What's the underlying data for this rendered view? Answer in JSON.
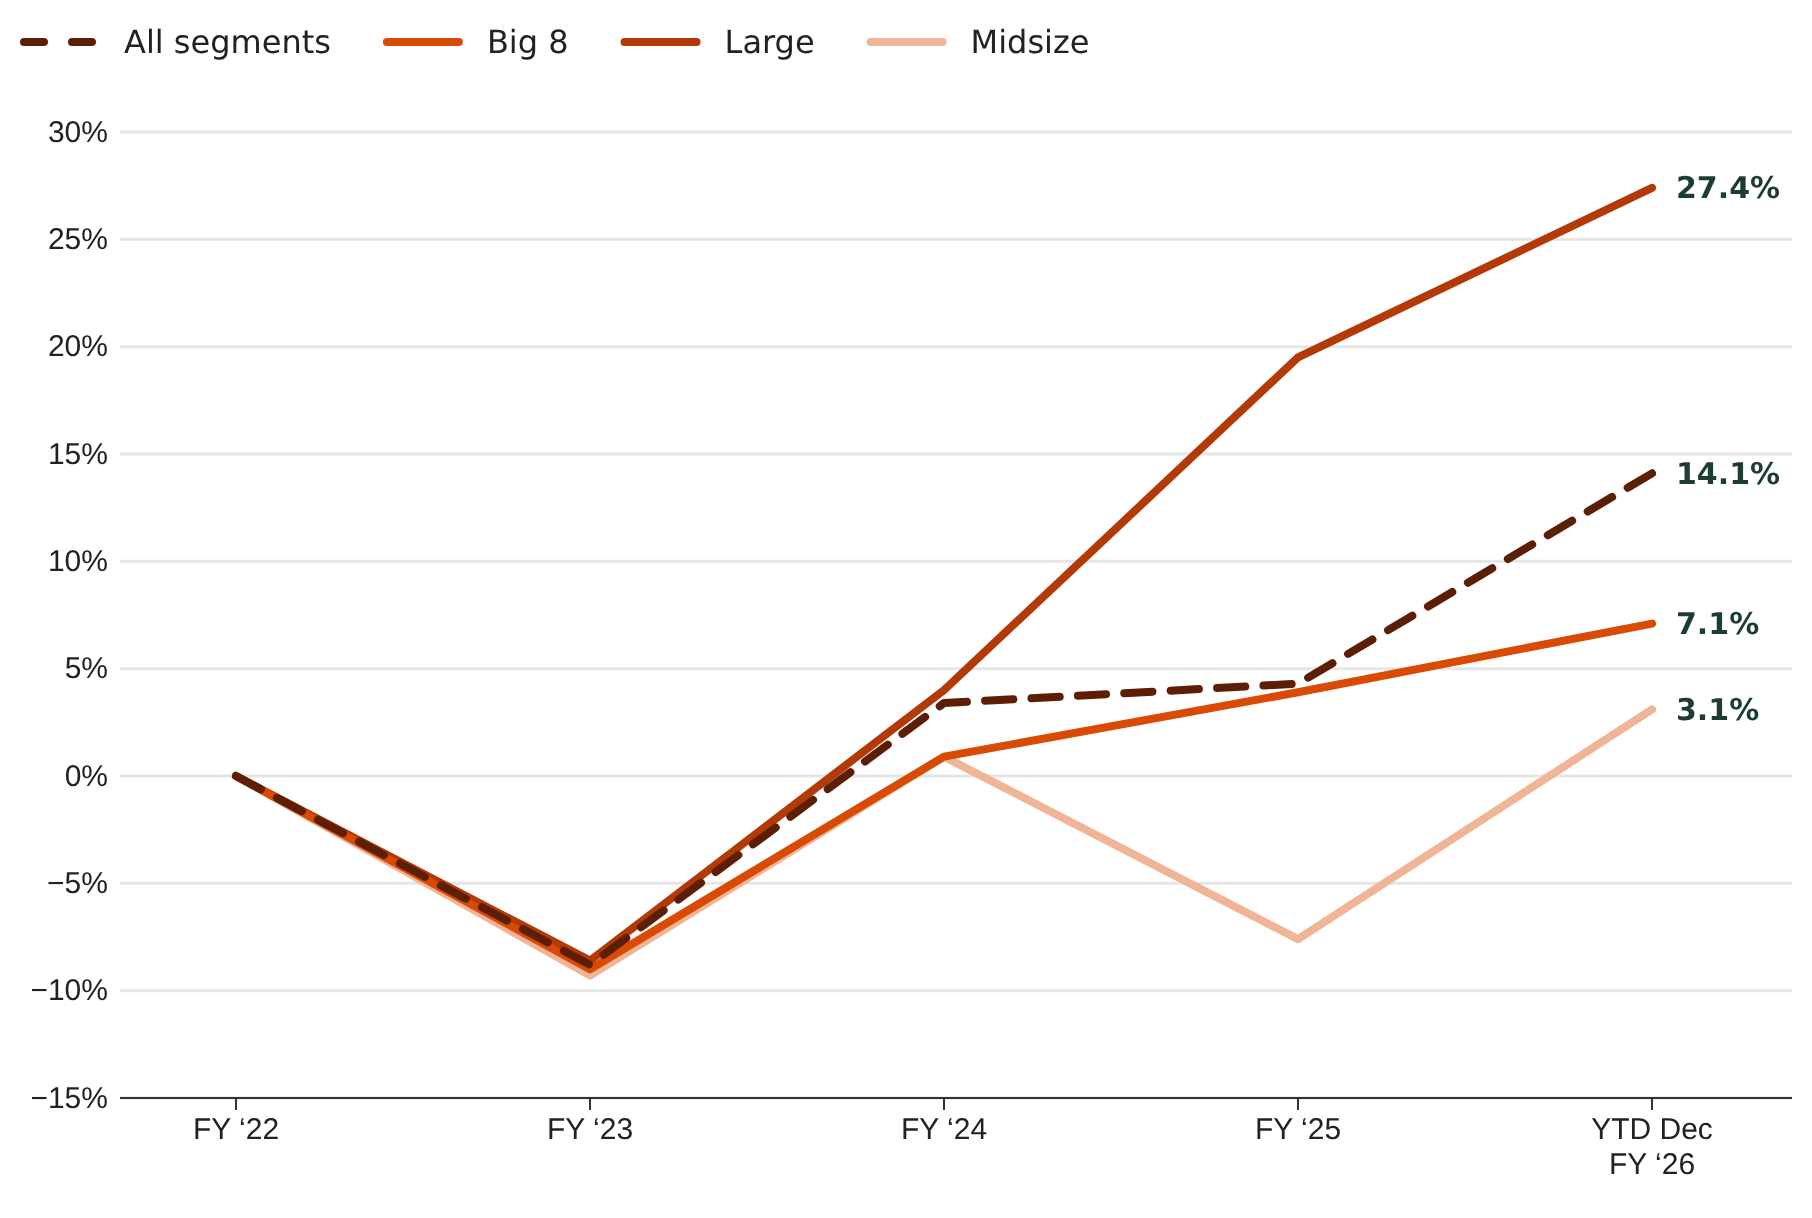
{
  "chart_data": {
    "type": "line",
    "categories": [
      "FY ‘22",
      "FY ‘23",
      "FY ‘24",
      "FY ‘25",
      "YTD Dec FY ‘26"
    ],
    "series": [
      {
        "name": "All segments",
        "color": "#5c1f05",
        "line_style": "dashed",
        "values": [
          0,
          -8.8,
          3.4,
          4.3,
          14.1
        ],
        "value_labels": [
          null,
          null,
          null,
          null,
          "14.1%"
        ]
      },
      {
        "name": "Big 8",
        "color": "#d94a04",
        "values": [
          0,
          -9.0,
          0.9,
          3.9,
          7.1
        ],
        "value_labels": [
          null,
          null,
          null,
          null,
          "7.1%"
        ]
      },
      {
        "name": "Large",
        "color": "#b33a06",
        "values": [
          0,
          -8.6,
          4.0,
          19.5,
          27.4
        ],
        "value_labels": [
          null,
          null,
          null,
          null,
          "27.4%"
        ]
      },
      {
        "name": "Midsize",
        "color": "#f0b496",
        "values": [
          0,
          -9.3,
          0.9,
          -7.6,
          3.1
        ],
        "value_labels": [
          null,
          null,
          null,
          null,
          "3.1%"
        ]
      }
    ],
    "ylim": [
      -15,
      30
    ],
    "yticks": [
      {
        "value": -15,
        "label": "−15%"
      },
      {
        "value": -10,
        "label": "−10%"
      },
      {
        "value": -5,
        "label": "−5%"
      },
      {
        "value": 0,
        "label": "0%"
      },
      {
        "value": 5,
        "label": "5%"
      },
      {
        "value": 10,
        "label": "10%"
      },
      {
        "value": 15,
        "label": "15%"
      },
      {
        "value": 20,
        "label": "20%"
      },
      {
        "value": 25,
        "label": "25%"
      },
      {
        "value": 30,
        "label": "30%"
      }
    ],
    "grid": "y",
    "legend": "top left",
    "line_style": "solid",
    "marker": "none"
  }
}
